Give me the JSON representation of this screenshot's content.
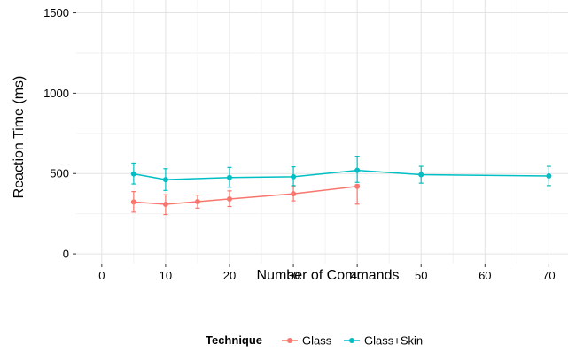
{
  "chart_data": {
    "type": "line",
    "title": "",
    "xlabel": "Number of Commands",
    "ylabel": "Reaction Time (ms)",
    "xlim": [
      -4,
      73
    ],
    "ylim": [
      -60,
      1580
    ],
    "x_ticks": [
      0,
      10,
      20,
      30,
      40,
      50,
      60,
      70
    ],
    "y_ticks": [
      0,
      500,
      1000,
      1500
    ],
    "x_tick_labels": [
      "0",
      "10",
      "20",
      "30",
      "40",
      "50",
      "60",
      "70"
    ],
    "y_tick_labels": [
      "0",
      "500",
      "1000",
      "1500"
    ],
    "grid": true,
    "error_bars": true,
    "legend": {
      "title": "Technique",
      "position": "bottom"
    },
    "series": [
      {
        "name": "Glass",
        "color": "#f8766d",
        "x": [
          5,
          10,
          15,
          20,
          30,
          40
        ],
        "y": [
          323,
          309,
          325,
          342,
          374,
          420
        ],
        "error_low": [
          260,
          245,
          285,
          295,
          330,
          310
        ],
        "error_high": [
          388,
          368,
          366,
          392,
          420,
          430
        ]
      },
      {
        "name": "Glass+Skin",
        "color": "#00bfc4",
        "x": [
          5,
          10,
          20,
          30,
          40,
          50,
          70
        ],
        "y": [
          498,
          462,
          475,
          480,
          520,
          493,
          485
        ],
        "error_low": [
          435,
          395,
          415,
          425,
          445,
          440,
          425
        ],
        "error_high": [
          565,
          530,
          538,
          542,
          608,
          545,
          545
        ]
      }
    ]
  }
}
